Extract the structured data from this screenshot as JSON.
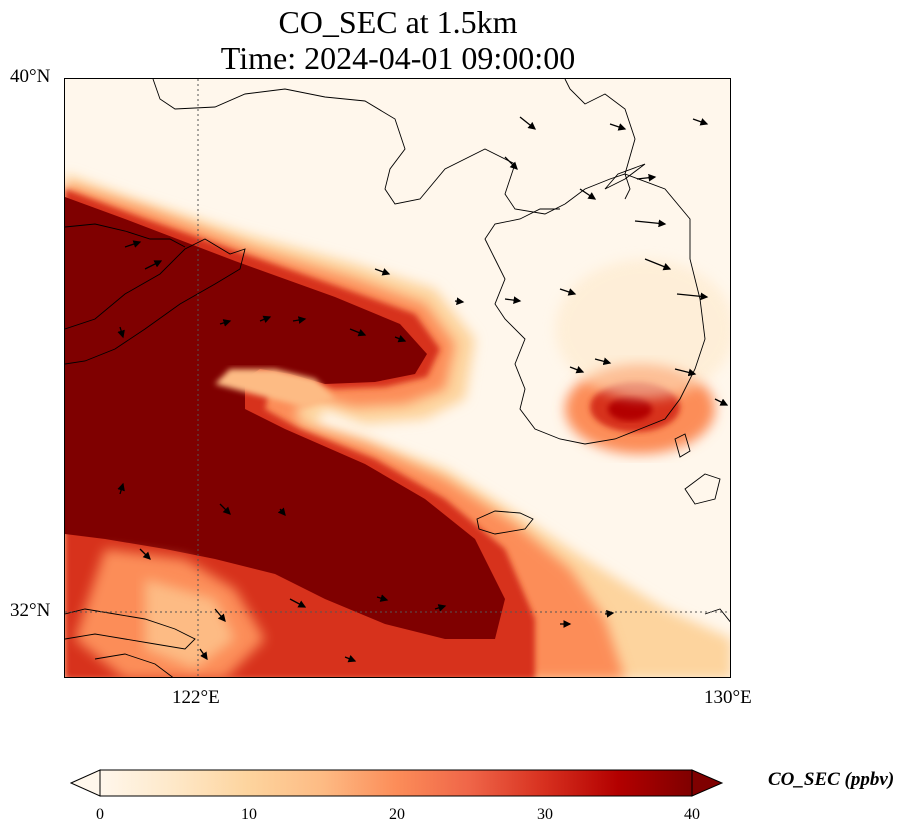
{
  "title": {
    "line1": "CO_SEC at 1.5km",
    "line2": "Time: 2024-04-01 09:00:00"
  },
  "axes": {
    "lat_ticks": [
      "40°N",
      "32°N"
    ],
    "lon_ticks": [
      "122°E",
      "130°E"
    ],
    "lon_range": [
      120,
      130
    ],
    "lat_range": [
      31,
      40
    ],
    "gridlines": "dotted"
  },
  "colorbar": {
    "label": "CO_SEC (ppbv)",
    "ticks": [
      "0",
      "10",
      "20",
      "30",
      "40"
    ],
    "range": [
      0,
      40
    ],
    "extend": "both",
    "colors": [
      "#fff7ec",
      "#fee8c8",
      "#fdd49e",
      "#fdbb84",
      "#fc8d59",
      "#ef6548",
      "#d7301f",
      "#b30000",
      "#7f0000"
    ]
  },
  "map_data": {
    "variable": "CO_SEC",
    "level": "1.5km",
    "plumes": [
      {
        "name": "main plume",
        "description": "saturated >40 ppbv band from Shandong/East China across Yellow Sea toward SW Korea"
      },
      {
        "name": "southern Korea hotspot",
        "peak_ppbv": 38
      }
    ],
    "wind_vectors": "westerly to west-northwesterly over Korea"
  }
}
